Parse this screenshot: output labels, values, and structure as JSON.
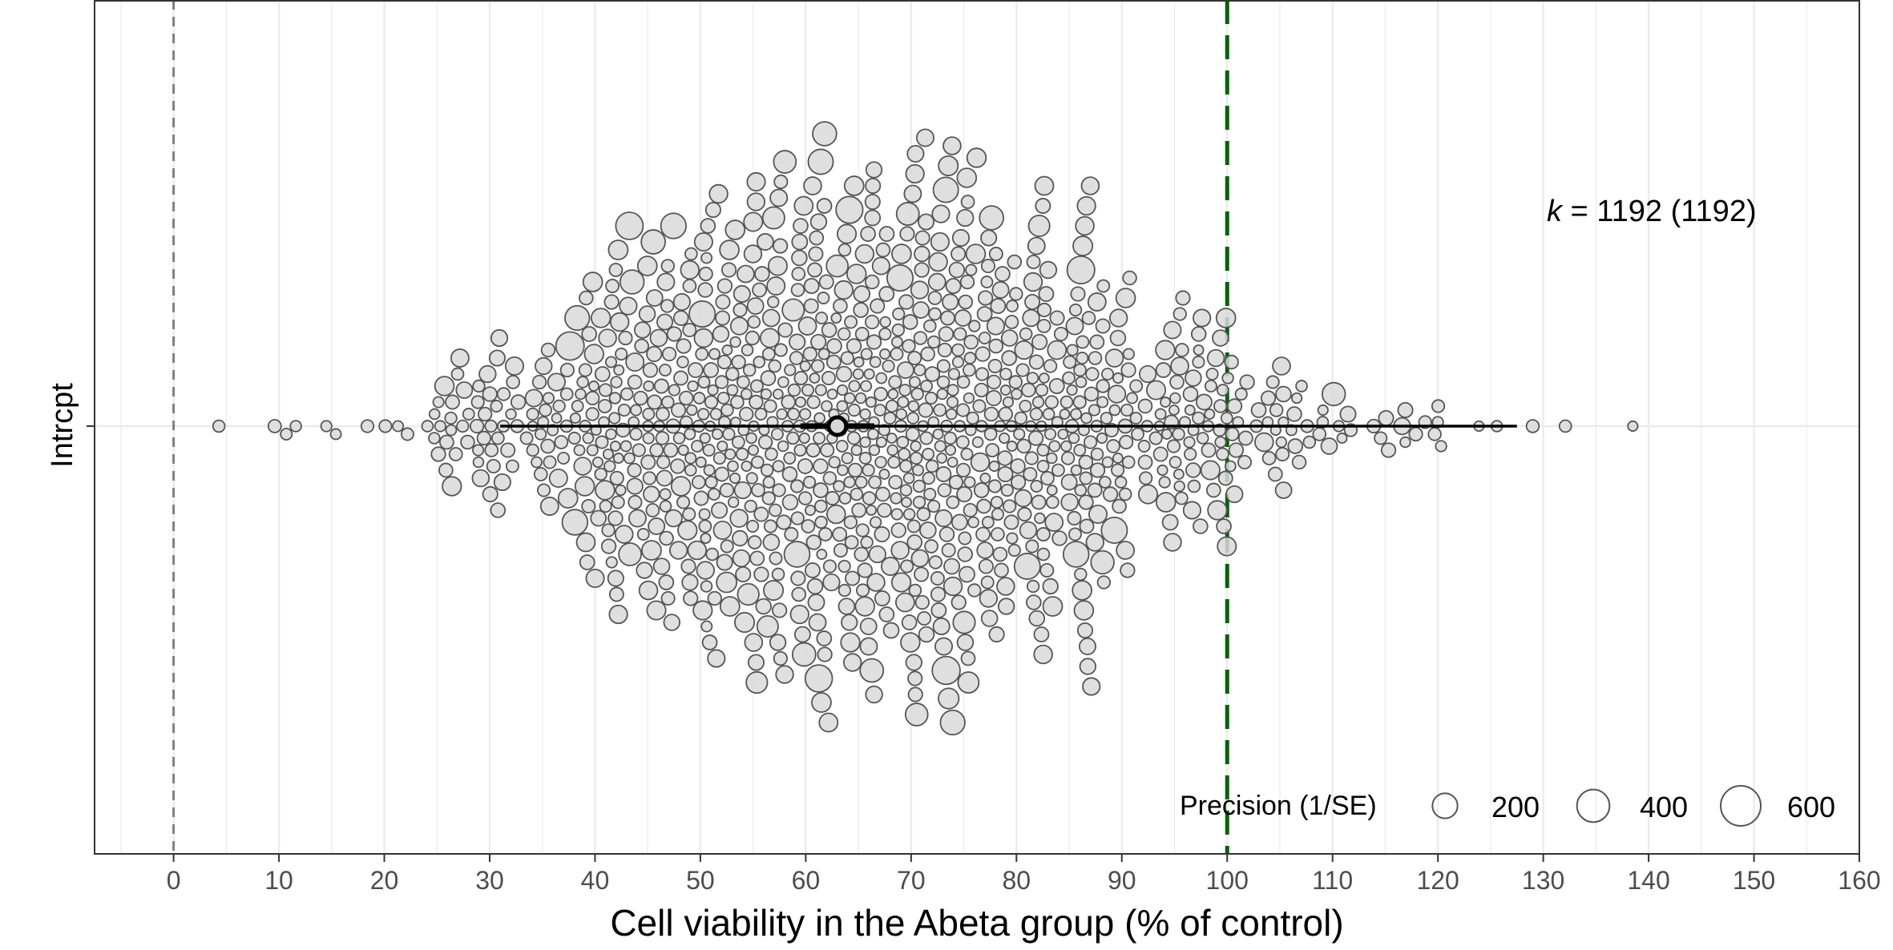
{
  "chart_data": {
    "type": "orchard",
    "xlabel": "Cell viability in the Abeta group (% of control)",
    "ylabel": "Intrcpt",
    "category": "Intrcpt",
    "xlim": [
      -7.5,
      160
    ],
    "x_ticks": [
      0,
      10,
      20,
      30,
      40,
      50,
      60,
      70,
      80,
      90,
      100,
      110,
      120,
      130,
      140,
      150,
      160
    ],
    "grid": true,
    "reference_lines": [
      {
        "x": 0,
        "style": "dashed",
        "color": "#808080"
      },
      {
        "x": 100,
        "style": "long-dashed",
        "color": "#006400"
      }
    ],
    "k_label": {
      "prefix": "k",
      "text": " = 1192 (1192)"
    },
    "k": 1192,
    "estimate": {
      "mean": 63.0,
      "ci": [
        59.5,
        66.5
      ],
      "pi": [
        31.0,
        127.5
      ]
    },
    "legend": {
      "title": "Precision (1/SE)",
      "entries": [
        {
          "label": "200",
          "value": 200
        },
        {
          "label": "400",
          "value": 400
        },
        {
          "label": "600",
          "value": 600
        }
      ],
      "position": "bottom-right"
    },
    "points_outliers": [
      4.3,
      9.6,
      10.7,
      11.6,
      14.5,
      15.4,
      18.4,
      20.1,
      21.3,
      22.2,
      24.1,
      117.9,
      120.3,
      125.6,
      129.0,
      132.1,
      138.5
    ],
    "points_note": "k points drawn as a beeswarm around the intercept row; marker size proportional to precision",
    "colors": {
      "point_fill": "#d9d9d9",
      "point_stroke": "#555555",
      "ref_green": "#006400",
      "ref_grey": "#808080",
      "grid": "#ebebeb"
    }
  }
}
